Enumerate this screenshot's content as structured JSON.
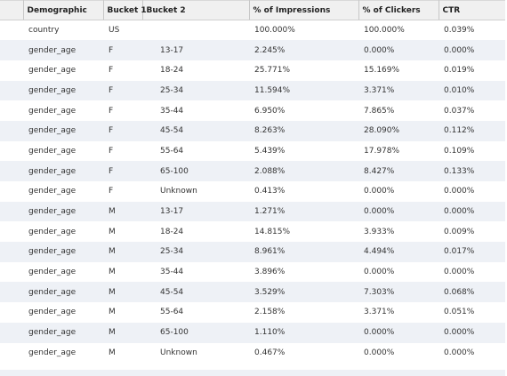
{
  "table": {
    "headers": [
      "Demographic",
      "Bucket 1",
      "Bucket 2",
      "% of Impressions",
      "% of Clickers",
      "CTR"
    ],
    "rows": [
      [
        "country",
        "US",
        "",
        "100.000%",
        "100.000%",
        "0.039%"
      ],
      [
        "gender_age",
        "F",
        "13-17",
        "2.245%",
        "0.000%",
        "0.000%"
      ],
      [
        "gender_age",
        "F",
        "18-24",
        "25.771%",
        "15.169%",
        "0.019%"
      ],
      [
        "gender_age",
        "F",
        "25-34",
        "11.594%",
        "3.371%",
        "0.010%"
      ],
      [
        "gender_age",
        "F",
        "35-44",
        "6.950%",
        "7.865%",
        "0.037%"
      ],
      [
        "gender_age",
        "F",
        "45-54",
        "8.263%",
        "28.090%",
        "0.112%"
      ],
      [
        "gender_age",
        "F",
        "55-64",
        "5.439%",
        "17.978%",
        "0.109%"
      ],
      [
        "gender_age",
        "F",
        "65-100",
        "2.088%",
        "8.427%",
        "0.133%"
      ],
      [
        "gender_age",
        "F",
        "Unknown",
        "0.413%",
        "0.000%",
        "0.000%"
      ],
      [
        "gender_age",
        "M",
        "13-17",
        "1.271%",
        "0.000%",
        "0.000%"
      ],
      [
        "gender_age",
        "M",
        "18-24",
        "14.815%",
        "3.933%",
        "0.009%"
      ],
      [
        "gender_age",
        "M",
        "25-34",
        "8.961%",
        "4.494%",
        "0.017%"
      ],
      [
        "gender_age",
        "M",
        "35-44",
        "3.896%",
        "0.000%",
        "0.000%"
      ],
      [
        "gender_age",
        "M",
        "45-54",
        "3.529%",
        "7.303%",
        "0.068%"
      ],
      [
        "gender_age",
        "M",
        "55-64",
        "2.158%",
        "3.371%",
        "0.051%"
      ],
      [
        "gender_age",
        "M",
        "65-100",
        "1.110%",
        "0.000%",
        "0.000%"
      ],
      [
        "gender_age",
        "M",
        "Unknown",
        "0.467%",
        "0.000%",
        "0.000%"
      ]
    ]
  }
}
